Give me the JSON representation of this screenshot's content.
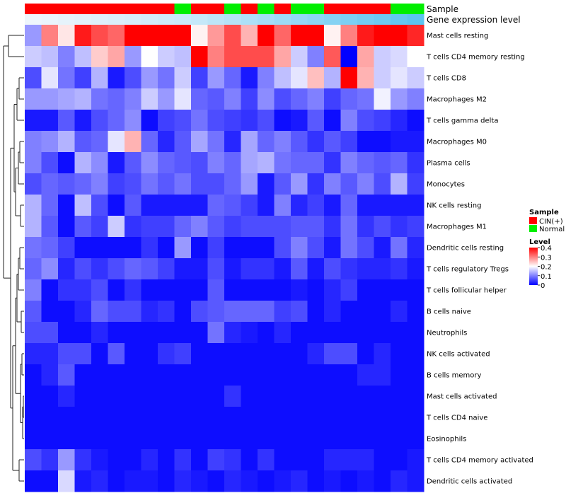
{
  "chart_data": {
    "type": "heatmap",
    "title": "",
    "annotation_tracks": [
      {
        "name": "Sample",
        "label": "Sample",
        "values": [
          "CIN(+)",
          "CIN(+)",
          "CIN(+)",
          "CIN(+)",
          "CIN(+)",
          "CIN(+)",
          "CIN(+)",
          "CIN(+)",
          "CIN(+)",
          "Normal",
          "CIN(+)",
          "CIN(+)",
          "Normal",
          "CIN(+)",
          "Normal",
          "CIN(+)",
          "Normal",
          "Normal",
          "CIN(+)",
          "CIN(+)",
          "CIN(+)",
          "CIN(+)",
          "Normal",
          "Normal"
        ]
      },
      {
        "name": "Gene expression level",
        "label": "Gene expression level",
        "values": [
          0.02,
          0.03,
          0.04,
          0.05,
          0.06,
          0.07,
          0.08,
          0.09,
          0.1,
          0.11,
          0.12,
          0.14,
          0.16,
          0.18,
          0.2,
          0.22,
          0.24,
          0.26,
          0.28,
          0.3,
          0.32,
          0.34,
          0.36,
          0.38
        ]
      }
    ],
    "rows": [
      "Mast cells resting",
      "T cells CD4 memory resting",
      "T cells CD8",
      "Macrophages M2",
      "T cells gamma delta",
      "Macrophages M0",
      "Plasma cells",
      "Monocytes",
      "NK cells resting",
      "Macrophages M1",
      "Dendritic cells resting",
      "T cells regulatory  Tregs",
      "T cells follicular helper",
      "B cells naive",
      "Neutrophils",
      "NK cells activated",
      "B cells memory",
      "Mast cells activated",
      "T cells CD4 naive",
      "Eosinophils",
      "T cells CD4 memory activated",
      "Dendritic cells activated"
    ],
    "n_columns": 24,
    "values": [
      [
        0.12,
        0.3,
        0.22,
        0.38,
        0.34,
        0.32,
        0.4,
        0.4,
        0.4,
        0.4,
        0.21,
        0.28,
        0.34,
        0.26,
        0.4,
        0.32,
        0.4,
        0.4,
        0.21,
        0.3,
        0.38,
        0.4,
        0.4,
        0.37
      ],
      [
        0.16,
        0.15,
        0.1,
        0.15,
        0.24,
        0.27,
        0.12,
        0.2,
        0.16,
        0.15,
        0.4,
        0.3,
        0.34,
        0.34,
        0.34,
        0.27,
        0.16,
        0.1,
        0.33,
        0.0,
        0.27,
        0.16,
        0.17,
        0.2
      ],
      [
        0.06,
        0.18,
        0.09,
        0.05,
        0.14,
        0.02,
        0.06,
        0.12,
        0.09,
        0.16,
        0.05,
        0.12,
        0.08,
        0.02,
        0.1,
        0.15,
        0.18,
        0.25,
        0.14,
        0.4,
        0.26,
        0.16,
        0.18,
        0.16
      ],
      [
        0.12,
        0.12,
        0.13,
        0.14,
        0.09,
        0.08,
        0.1,
        0.16,
        0.12,
        0.18,
        0.08,
        0.07,
        0.1,
        0.05,
        0.11,
        0.06,
        0.08,
        0.1,
        0.05,
        0.08,
        0.09,
        0.19,
        0.12,
        0.1
      ],
      [
        0.02,
        0.02,
        0.07,
        0.02,
        0.06,
        0.08,
        0.11,
        0.01,
        0.05,
        0.06,
        0.09,
        0.06,
        0.05,
        0.04,
        0.06,
        0.01,
        0.02,
        0.07,
        0.01,
        0.1,
        0.06,
        0.05,
        0.03,
        0.01
      ],
      [
        0.1,
        0.11,
        0.14,
        0.07,
        0.08,
        0.18,
        0.26,
        0.08,
        0.03,
        0.07,
        0.13,
        0.09,
        0.03,
        0.13,
        0.08,
        0.1,
        0.07,
        0.04,
        0.07,
        0.05,
        0.01,
        0.01,
        0.02,
        0.02
      ],
      [
        0.1,
        0.06,
        0.01,
        0.14,
        0.11,
        0.02,
        0.07,
        0.11,
        0.08,
        0.07,
        0.06,
        0.1,
        0.08,
        0.13,
        0.14,
        0.09,
        0.08,
        0.08,
        0.04,
        0.1,
        0.08,
        0.07,
        0.08,
        0.04
      ],
      [
        0.06,
        0.08,
        0.07,
        0.08,
        0.1,
        0.05,
        0.06,
        0.09,
        0.07,
        0.09,
        0.06,
        0.06,
        0.08,
        0.12,
        0.02,
        0.07,
        0.12,
        0.04,
        0.1,
        0.07,
        0.1,
        0.06,
        0.14,
        0.05
      ],
      [
        0.14,
        0.08,
        0.01,
        0.15,
        0.06,
        0.01,
        0.07,
        0.02,
        0.02,
        0.02,
        0.02,
        0.08,
        0.07,
        0.05,
        0.02,
        0.1,
        0.03,
        0.05,
        0.02,
        0.08,
        0.02,
        0.02,
        0.02,
        0.02
      ],
      [
        0.14,
        0.07,
        0.01,
        0.07,
        0.05,
        0.16,
        0.04,
        0.05,
        0.05,
        0.08,
        0.1,
        0.07,
        0.05,
        0.06,
        0.06,
        0.06,
        0.07,
        0.07,
        0.04,
        0.09,
        0.04,
        0.06,
        0.04,
        0.05
      ],
      [
        0.09,
        0.08,
        0.05,
        0.01,
        0.01,
        0.01,
        0.01,
        0.04,
        0.01,
        0.12,
        0.01,
        0.05,
        0.01,
        0.01,
        0.01,
        0.06,
        0.1,
        0.06,
        0.02,
        0.09,
        0.06,
        0.02,
        0.09,
        0.03
      ],
      [
        0.08,
        0.11,
        0.03,
        0.06,
        0.04,
        0.06,
        0.08,
        0.07,
        0.05,
        0.02,
        0.02,
        0.06,
        0.02,
        0.04,
        0.04,
        0.02,
        0.07,
        0.02,
        0.06,
        0.04,
        0.03,
        0.03,
        0.04,
        0.02
      ],
      [
        0.1,
        0.01,
        0.04,
        0.04,
        0.06,
        0.01,
        0.04,
        0.01,
        0.01,
        0.01,
        0.01,
        0.07,
        0.01,
        0.01,
        0.01,
        0.01,
        0.02,
        0.01,
        0.03,
        0.05,
        0.01,
        0.01,
        0.01,
        0.01
      ],
      [
        0.07,
        0.01,
        0.01,
        0.03,
        0.08,
        0.06,
        0.06,
        0.03,
        0.04,
        0.01,
        0.06,
        0.07,
        0.08,
        0.08,
        0.08,
        0.05,
        0.06,
        0.01,
        0.03,
        0.01,
        0.01,
        0.01,
        0.03,
        0.01
      ],
      [
        0.06,
        0.06,
        0.01,
        0.01,
        0.03,
        0.01,
        0.01,
        0.01,
        0.01,
        0.01,
        0.01,
        0.09,
        0.03,
        0.02,
        0.01,
        0.03,
        0.01,
        0.01,
        0.01,
        0.01,
        0.01,
        0.01,
        0.01,
        0.01
      ],
      [
        0.03,
        0.03,
        0.06,
        0.06,
        0.01,
        0.07,
        0.01,
        0.01,
        0.04,
        0.05,
        0.01,
        0.01,
        0.01,
        0.01,
        0.01,
        0.01,
        0.01,
        0.03,
        0.06,
        0.06,
        0.01,
        0.03,
        0.01,
        0.01
      ],
      [
        0.01,
        0.03,
        0.07,
        0.01,
        0.01,
        0.01,
        0.01,
        0.01,
        0.01,
        0.01,
        0.01,
        0.01,
        0.01,
        0.01,
        0.01,
        0.01,
        0.01,
        0.01,
        0.01,
        0.01,
        0.03,
        0.03,
        0.01,
        0.01
      ],
      [
        0.01,
        0.01,
        0.03,
        0.01,
        0.01,
        0.01,
        0.01,
        0.01,
        0.01,
        0.01,
        0.01,
        0.01,
        0.04,
        0.01,
        0.01,
        0.01,
        0.01,
        0.01,
        0.01,
        0.01,
        0.01,
        0.01,
        0.01,
        0.01
      ],
      [
        0.01,
        0.01,
        0.01,
        0.01,
        0.01,
        0.01,
        0.01,
        0.01,
        0.01,
        0.01,
        0.01,
        0.01,
        0.01,
        0.01,
        0.01,
        0.01,
        0.01,
        0.01,
        0.01,
        0.01,
        0.01,
        0.01,
        0.01,
        0.01
      ],
      [
        0.01,
        0.01,
        0.01,
        0.01,
        0.01,
        0.01,
        0.01,
        0.01,
        0.01,
        0.01,
        0.01,
        0.01,
        0.01,
        0.01,
        0.01,
        0.01,
        0.01,
        0.01,
        0.01,
        0.01,
        0.01,
        0.01,
        0.01,
        0.01
      ],
      [
        0.06,
        0.04,
        0.12,
        0.04,
        0.02,
        0.01,
        0.01,
        0.03,
        0.01,
        0.04,
        0.01,
        0.05,
        0.04,
        0.01,
        0.04,
        0.01,
        0.01,
        0.01,
        0.03,
        0.03,
        0.03,
        0.01,
        0.01,
        0.02
      ],
      [
        0.01,
        0.01,
        0.17,
        0.02,
        0.03,
        0.01,
        0.02,
        0.02,
        0.01,
        0.03,
        0.02,
        0.01,
        0.03,
        0.02,
        0.01,
        0.02,
        0.03,
        0.01,
        0.02,
        0.01,
        0.02,
        0.01,
        0.03,
        0.02
      ]
    ],
    "color_scale": {
      "low": "#0000ff",
      "mid": "#ffffff",
      "high": "#ff0000",
      "min": 0,
      "mid_value": 0.2,
      "max": 0.4
    },
    "legend": {
      "sample": {
        "title": "Sample",
        "entries": [
          {
            "label": "CIN(+)",
            "color": "#ff0000"
          },
          {
            "label": "Normal",
            "color": "#00ee00"
          }
        ]
      },
      "level": {
        "title": "Level",
        "ticks": [
          "0.4",
          "0.3",
          "0.2",
          "0.1",
          "0"
        ],
        "tick_values": [
          0.4,
          0.3,
          0.2,
          0.1,
          0
        ]
      }
    },
    "row_dendrogram": true,
    "column_dendrogram": false
  }
}
